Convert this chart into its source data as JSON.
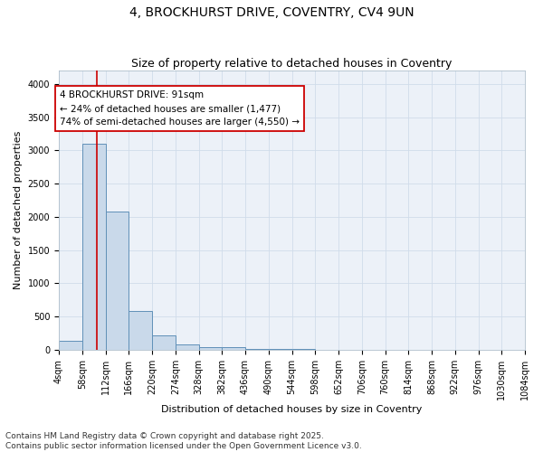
{
  "title1": "4, BROCKHURST DRIVE, COVENTRY, CV4 9UN",
  "title2": "Size of property relative to detached houses in Coventry",
  "xlabel": "Distribution of detached houses by size in Coventry",
  "ylabel": "Number of detached properties",
  "bin_edges": [
    4,
    58,
    112,
    166,
    220,
    274,
    328,
    382,
    436,
    490,
    544,
    598,
    652,
    706,
    760,
    814,
    868,
    922,
    976,
    1030,
    1084
  ],
  "bar_heights": [
    130,
    3100,
    2080,
    580,
    215,
    75,
    45,
    35,
    20,
    15,
    8,
    5,
    3,
    2,
    1,
    1,
    0,
    0,
    0,
    0
  ],
  "bar_color": "#c9d9ea",
  "bar_edge_color": "#6090b8",
  "bar_edge_width": 0.7,
  "red_line_x": 91,
  "red_line_color": "#cc0000",
  "annotation_text": "4 BROCKHURST DRIVE: 91sqm\n← 24% of detached houses are smaller (1,477)\n74% of semi-detached houses are larger (4,550) →",
  "annotation_box_edge_color": "#cc0000",
  "annotation_fontsize": 7.5,
  "ylim": [
    0,
    4200
  ],
  "yticks": [
    0,
    500,
    1000,
    1500,
    2000,
    2500,
    3000,
    3500,
    4000
  ],
  "grid_color": "#d0dcea",
  "bg_color": "#ecf1f8",
  "footer1": "Contains HM Land Registry data © Crown copyright and database right 2025.",
  "footer2": "Contains public sector information licensed under the Open Government Licence v3.0.",
  "title1_fontsize": 10,
  "title2_fontsize": 9,
  "axis_label_fontsize": 8,
  "tick_fontsize": 7,
  "footer_fontsize": 6.5
}
